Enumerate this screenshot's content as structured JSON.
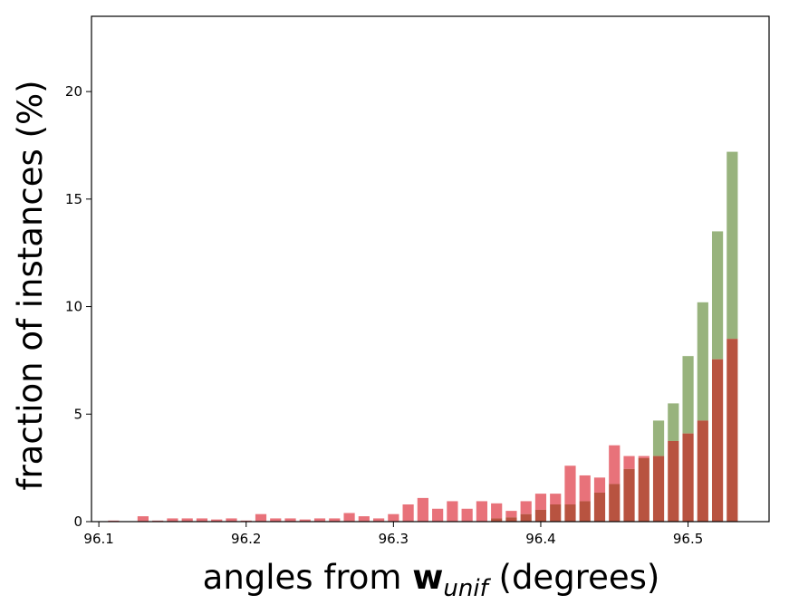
{
  "chart_data": {
    "type": "bar",
    "title": "",
    "xlabel": {
      "prefix": "angles from ",
      "bold": "w",
      "subscript": "unif",
      "suffix": " (degrees)"
    },
    "ylabel": "fraction of instances (%)",
    "xlim": [
      96.095,
      96.555
    ],
    "ylim": [
      0,
      23.5
    ],
    "xticks": [
      96.1,
      96.2,
      96.3,
      96.4,
      96.5
    ],
    "xtick_labels": [
      "96.1",
      "96.2",
      "96.3",
      "96.4",
      "96.5"
    ],
    "yticks": [
      0,
      5,
      10,
      15,
      20
    ],
    "ytick_labels": [
      "0",
      "5",
      "10",
      "15",
      "20"
    ],
    "grid": false,
    "bar_width": 0.0075,
    "overlap_color": "#b85340",
    "series": [
      {
        "color": "#e8727a",
        "x": [
          96.1,
          96.11,
          96.12,
          96.13,
          96.14,
          96.15,
          96.16,
          96.17,
          96.18,
          96.19,
          96.2,
          96.21,
          96.22,
          96.23,
          96.24,
          96.25,
          96.26,
          96.27,
          96.28,
          96.29,
          96.3,
          96.31,
          96.32,
          96.33,
          96.34,
          96.35,
          96.36,
          96.37,
          96.38,
          96.39,
          96.4,
          96.41,
          96.42,
          96.43,
          96.44,
          96.45,
          96.46,
          96.47,
          96.48,
          96.49,
          96.5,
          96.51,
          96.52,
          96.53
        ],
        "values": [
          0.02,
          0.05,
          0.02,
          0.25,
          0.05,
          0.15,
          0.15,
          0.15,
          0.1,
          0.15,
          0.05,
          0.35,
          0.15,
          0.15,
          0.1,
          0.15,
          0.15,
          0.4,
          0.25,
          0.15,
          0.35,
          0.8,
          1.1,
          0.6,
          0.95,
          0.6,
          0.95,
          0.85,
          0.5,
          0.95,
          1.3,
          1.3,
          2.6,
          2.15,
          2.05,
          3.55,
          3.05,
          3.05,
          3.05,
          3.75,
          4.1,
          4.7,
          7.55,
          8.5
        ]
      },
      {
        "color": "#98b37d",
        "x": [
          96.36,
          96.37,
          96.38,
          96.39,
          96.4,
          96.41,
          96.42,
          96.43,
          96.44,
          96.45,
          96.46,
          96.47,
          96.48,
          96.49,
          96.5,
          96.51,
          96.52,
          96.53
        ],
        "values": [
          0.02,
          0.15,
          0.2,
          0.35,
          0.55,
          0.8,
          0.8,
          0.95,
          1.35,
          1.75,
          2.45,
          2.95,
          4.7,
          5.5,
          7.7,
          10.2,
          13.5,
          17.2
        ]
      }
    ],
    "extra_bars_note": ""
  }
}
